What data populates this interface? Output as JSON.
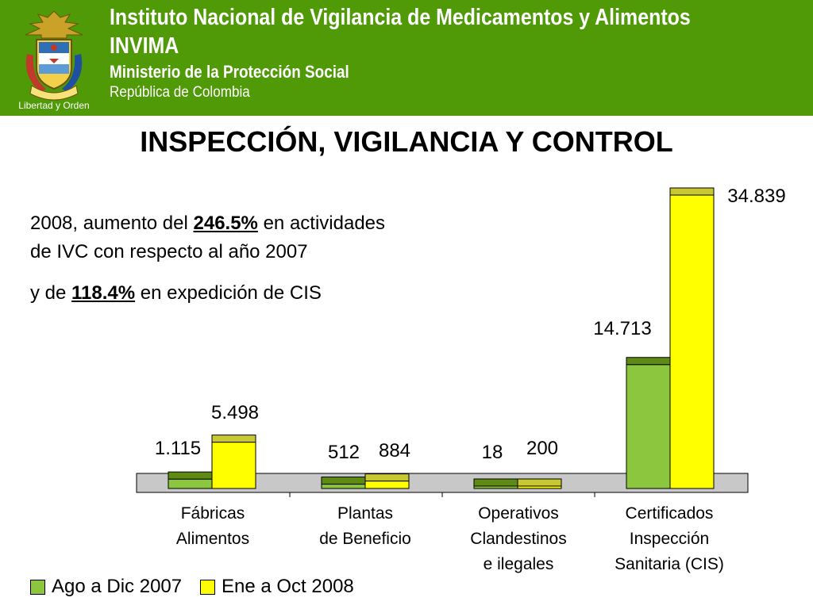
{
  "header": {
    "institute": "Instituto Nacional de Vigilancia de Medicamentos y Alimentos",
    "acronym": "INVIMA",
    "ministry": "Ministerio de la Protección Social",
    "country": "República de Colombia",
    "emblem_motto": "Libertad y Orden",
    "background": "#4f9a06"
  },
  "page_title": "INSPECCIÓN, VIGILANCIA Y CONTROL",
  "notes": {
    "line1_pre": "2008, aumento del ",
    "line1_pct": "246.5%",
    "line1_post": " en actividades",
    "line2": "de IVC con respecto al año 2007",
    "line3_pre": "y de ",
    "line3_pct": "118.4%",
    "line3_post": " en expedición de CIS"
  },
  "chart_data": {
    "type": "bar",
    "title": "",
    "xlabel": "",
    "ylabel": "",
    "ylim": [
      0,
      34839
    ],
    "categories": [
      [
        "Fábricas",
        "Alimentos"
      ],
      [
        "Plantas",
        "de Beneficio"
      ],
      [
        "Operativos",
        "Clandestinos",
        "e ilegales"
      ],
      [
        "Certificados",
        "Inspección",
        "Sanitaria (CIS)"
      ]
    ],
    "series": [
      {
        "name": "Ago a Dic 2007",
        "values": [
          1115,
          512,
          18,
          14713
        ],
        "labels": [
          "1.115",
          "512",
          "18",
          "14.713"
        ],
        "color": "#8cc63f",
        "top_color": "#5f8a14"
      },
      {
        "name": "Ene a Oct 2008",
        "values": [
          5498,
          884,
          200,
          34839
        ],
        "labels": [
          "5.498",
          "884",
          "200",
          "34.839"
        ],
        "color": "#ffff00",
        "top_color": "#c8c832"
      }
    ],
    "grid": false,
    "legend_position": "bottom-left",
    "floor_color": "#c8c8c8"
  }
}
